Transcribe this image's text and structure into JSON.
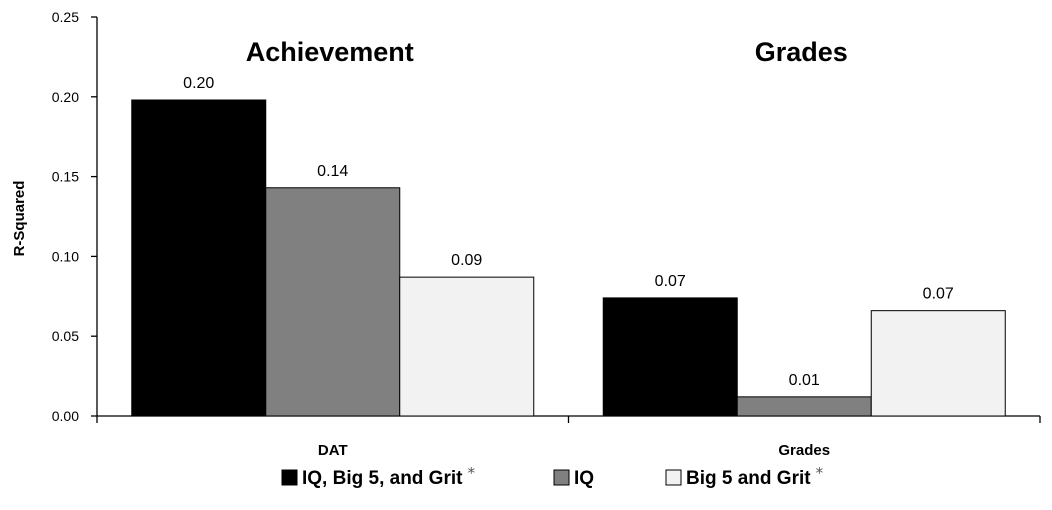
{
  "chart_data": {
    "type": "bar",
    "ylabel": "R-Squared",
    "ylim": [
      0,
      0.25
    ],
    "yticks": [
      "0.00",
      "0.05",
      "0.10",
      "0.15",
      "0.20",
      "0.25"
    ],
    "categories": [
      "DAT",
      "Grades"
    ],
    "group_titles": [
      "Achievement",
      "Grades"
    ],
    "series": [
      {
        "name": "IQ, Big 5, and Grit",
        "marker": "*",
        "color": "#000000",
        "values": [
          0.198,
          0.074
        ],
        "labels": [
          "0.20",
          "0.07"
        ]
      },
      {
        "name": "IQ",
        "marker": "",
        "color": "#808080",
        "values": [
          0.143,
          0.012
        ],
        "labels": [
          "0.14",
          "0.01"
        ]
      },
      {
        "name": "Big 5 and Grit",
        "marker": "*",
        "color": "#f2f2f2",
        "values": [
          0.087,
          0.066
        ],
        "labels": [
          "0.09",
          "0.07"
        ]
      }
    ],
    "legend": "bottom",
    "grid": false
  }
}
